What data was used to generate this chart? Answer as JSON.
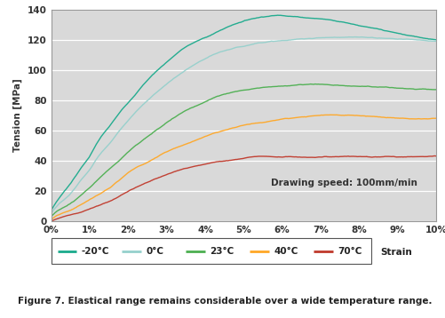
{
  "ylabel": "Tension [MPa]",
  "ylim": [
    0,
    140
  ],
  "xlim": [
    0,
    0.1
  ],
  "annotation": "Drawing speed: 100mm/min",
  "figure_caption": "Figure 7. Elastical range remains considerable over a wide temperature range.",
  "legend_labels": [
    "-20°C",
    "0°C",
    "23°C",
    "40°C",
    "70°C"
  ],
  "colors": [
    "#1aaa8c",
    "#95d0cc",
    "#4caf50",
    "#ffa726",
    "#c0392b"
  ],
  "background_color": "#d9d9d9",
  "curves": {
    "-20C": {
      "x": [
        0,
        0.002,
        0.005,
        0.008,
        0.01,
        0.012,
        0.015,
        0.018,
        0.02,
        0.025,
        0.03,
        0.035,
        0.04,
        0.045,
        0.05,
        0.055,
        0.06,
        0.065,
        0.07,
        0.08,
        0.09,
        0.1
      ],
      "y": [
        7,
        15,
        25,
        36,
        43,
        52,
        62,
        72,
        78,
        93,
        105,
        115,
        121,
        127,
        132,
        135,
        136,
        135,
        134,
        130,
        124,
        120
      ]
    },
    "0C": {
      "x": [
        0,
        0.002,
        0.005,
        0.008,
        0.01,
        0.012,
        0.015,
        0.018,
        0.02,
        0.025,
        0.03,
        0.035,
        0.04,
        0.045,
        0.05,
        0.055,
        0.06,
        0.065,
        0.07,
        0.08,
        0.09,
        0.1
      ],
      "y": [
        5,
        11,
        18,
        28,
        34,
        42,
        51,
        61,
        67,
        80,
        91,
        100,
        107,
        112,
        115,
        118,
        119,
        120,
        121,
        121,
        120,
        119
      ]
    },
    "23C": {
      "x": [
        0,
        0.002,
        0.005,
        0.008,
        0.01,
        0.012,
        0.015,
        0.018,
        0.02,
        0.025,
        0.03,
        0.035,
        0.04,
        0.045,
        0.05,
        0.055,
        0.06,
        0.065,
        0.07,
        0.08,
        0.09,
        0.1
      ],
      "y": [
        3,
        7,
        11,
        17,
        21,
        26,
        33,
        40,
        45,
        55,
        64,
        72,
        78,
        83,
        86,
        88,
        89,
        90,
        90,
        89,
        88,
        87
      ]
    },
    "40C": {
      "x": [
        0,
        0.002,
        0.005,
        0.008,
        0.01,
        0.012,
        0.015,
        0.018,
        0.02,
        0.025,
        0.03,
        0.035,
        0.04,
        0.045,
        0.05,
        0.055,
        0.06,
        0.065,
        0.07,
        0.08,
        0.09,
        0.1
      ],
      "y": [
        1,
        4,
        7,
        11,
        14,
        17,
        22,
        28,
        32,
        39,
        46,
        51,
        56,
        60,
        63,
        65,
        67,
        68,
        69,
        69,
        68,
        68
      ]
    },
    "70C": {
      "x": [
        0,
        0.002,
        0.005,
        0.008,
        0.01,
        0.012,
        0.015,
        0.018,
        0.02,
        0.025,
        0.03,
        0.035,
        0.04,
        0.045,
        0.05,
        0.055,
        0.06,
        0.065,
        0.07,
        0.08,
        0.09,
        0.1
      ],
      "y": [
        0,
        2,
        4,
        6,
        8,
        10,
        13,
        17,
        20,
        26,
        31,
        35,
        38,
        40,
        42,
        43,
        43,
        43,
        43,
        43,
        43,
        43
      ]
    }
  }
}
